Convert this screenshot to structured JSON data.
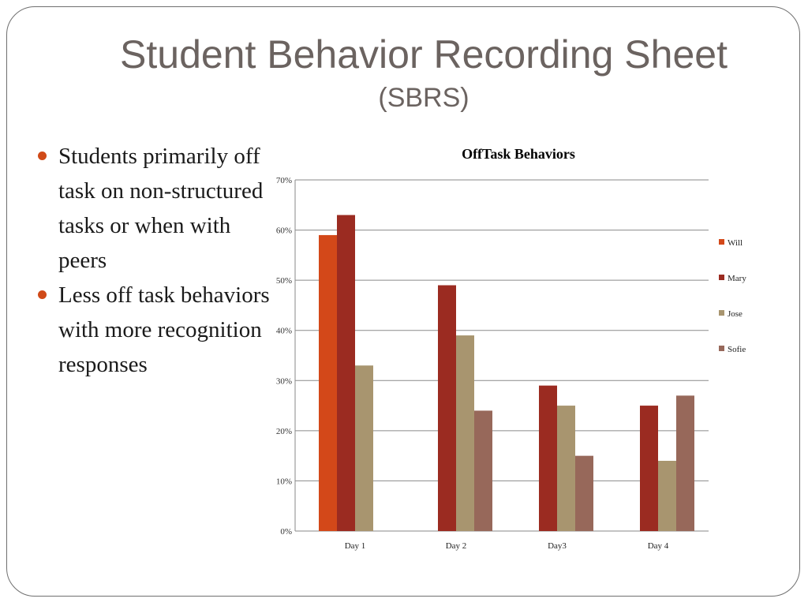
{
  "slide": {
    "title": "Student Behavior Recording Sheet",
    "subtitle": "(SBRS)",
    "bullets": [
      "Students primarily off task on non-structured tasks or when with peers",
      "Less off task behaviors with more recognition responses"
    ],
    "bullet_color": "#d04a18"
  },
  "chart_data": {
    "type": "bar",
    "title": "OffTask Behaviors",
    "categories": [
      "Day 1",
      "Day 2",
      "Day3",
      "Day 4"
    ],
    "series": [
      {
        "name": "Will",
        "color": "#d34819",
        "values": [
          59,
          null,
          null,
          null
        ]
      },
      {
        "name": "Mary",
        "color": "#9b2b21",
        "values": [
          63,
          49,
          29,
          25
        ]
      },
      {
        "name": "Jose",
        "color": "#a8956f",
        "values": [
          33,
          39,
          25,
          14
        ]
      },
      {
        "name": "Sofie",
        "color": "#97685a",
        "values": [
          null,
          24,
          15,
          27
        ]
      }
    ],
    "ylim": [
      0,
      70
    ],
    "yticks": [
      "0%",
      "10%",
      "20%",
      "30%",
      "40%",
      "50%",
      "60%",
      "70%"
    ],
    "grid": true,
    "legend": "right"
  }
}
